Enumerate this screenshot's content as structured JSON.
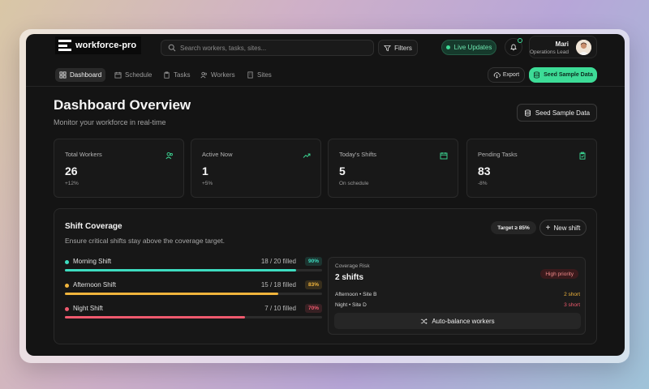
{
  "brand": {
    "name": "workforce-pro"
  },
  "header": {
    "search_placeholder": "Search workers, tasks, sites...",
    "filters_label": "Filters",
    "live_label": "Live Updates",
    "user_name": "Mari",
    "user_role": "Operations Lead"
  },
  "nav": {
    "items": [
      {
        "label": "Dashboard",
        "icon": "grid-icon",
        "active": true
      },
      {
        "label": "Schedule",
        "icon": "calendar-icon",
        "active": false
      },
      {
        "label": "Tasks",
        "icon": "clipboard-icon",
        "active": false
      },
      {
        "label": "Workers",
        "icon": "users-icon",
        "active": false
      },
      {
        "label": "Sites",
        "icon": "building-icon",
        "active": false
      }
    ],
    "export_label": "Export",
    "seed_label": "Seed Sample Data"
  },
  "page": {
    "title": "Dashboard Overview",
    "subtitle": "Monitor your workforce in real-time",
    "seed_label": "Seed Sample Data"
  },
  "stats": [
    {
      "label": "Total Workers",
      "value": "26",
      "change": "+12%",
      "icon": "users-icon"
    },
    {
      "label": "Active Now",
      "value": "1",
      "change": "+5%",
      "icon": "trending-up-icon"
    },
    {
      "label": "Today's Shifts",
      "value": "5",
      "change": "On schedule",
      "icon": "calendar-icon"
    },
    {
      "label": "Pending Tasks",
      "value": "83",
      "change": "-8%",
      "icon": "clipboard-check-icon"
    }
  ],
  "coverage": {
    "title": "Shift Coverage",
    "subtitle": "Ensure critical shifts stay above the coverage target.",
    "target_label": "Target ≥ 85%",
    "new_shift_label": "New shift",
    "shifts": [
      {
        "name": "Morning Shift",
        "filled": "18 / 20 filled",
        "percent": "90%",
        "fraction": 0.9,
        "color": "#3ddcc0"
      },
      {
        "name": "Afternoon Shift",
        "filled": "15 / 18 filled",
        "percent": "83%",
        "fraction": 0.83,
        "color": "#f0b43c"
      },
      {
        "name": "Night Shift",
        "filled": "7 / 10 filled",
        "percent": "70%",
        "fraction": 0.7,
        "color": "#f05a6e"
      }
    ],
    "risk": {
      "label": "Coverage Risk",
      "count": "2 shifts",
      "priority": "High priority",
      "rows": [
        {
          "site": "Afternoon • Site B",
          "short": "2 short",
          "color": "#f0b43c"
        },
        {
          "site": "Night • Site D",
          "short": "3 short",
          "color": "#f05a6e"
        }
      ],
      "auto_label": "Auto-balance workers"
    }
  },
  "colors": {
    "accent": "#3ddc97",
    "background": "#141414"
  }
}
